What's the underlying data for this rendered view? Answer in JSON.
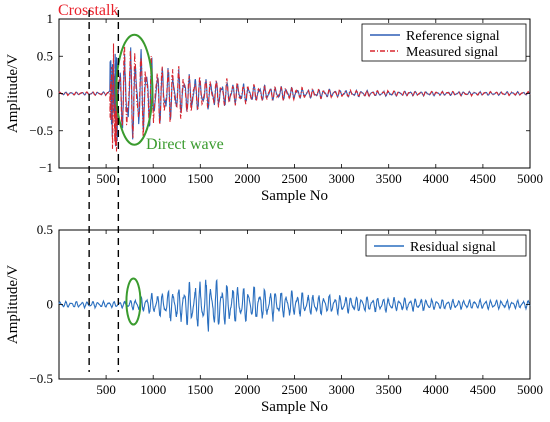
{
  "chart_data": [
    {
      "type": "line",
      "xlabel": "Sample No",
      "ylabel": "Amplitude/V",
      "xlim": [
        0,
        5000
      ],
      "ylim": [
        -1,
        1
      ],
      "xticks": [
        500,
        1000,
        1500,
        2000,
        2500,
        3000,
        3500,
        4000,
        4500,
        5000
      ],
      "yticks": [
        -1,
        -0.5,
        0,
        0.5,
        1
      ],
      "ytick_labels": [
        "−1",
        "−0.5",
        "0",
        "0.5",
        "1"
      ],
      "grid": false,
      "legend_position": "top-right",
      "series": [
        {
          "name": "Reference signal",
          "style": "solid",
          "color": "#2f5fb5"
        },
        {
          "name": "Measured signal",
          "style": "dash-dot",
          "color": "#d8262e"
        }
      ],
      "crosstalk_window": [
        320,
        630
      ],
      "direct_wave": {
        "x": 800,
        "y": 0.05
      },
      "envelope": {
        "onset": 520,
        "peak": 720,
        "peak_amplitude": 0.6,
        "decay_to": 3000
      },
      "annotations": {
        "crosstalk": "Crosstalk",
        "direct_wave": "Direct wave"
      }
    },
    {
      "type": "line",
      "xlabel": "Sample No",
      "ylabel": "Amplitude/V",
      "xlim": [
        0,
        5000
      ],
      "ylim": [
        -0.5,
        0.5
      ],
      "xticks": [
        500,
        1000,
        1500,
        2000,
        2500,
        3000,
        3500,
        4000,
        4500,
        5000
      ],
      "yticks": [
        -0.5,
        0,
        0.5
      ],
      "ytick_labels": [
        "−0.5",
        "0",
        "0.5"
      ],
      "grid": false,
      "legend_position": "top-right",
      "series": [
        {
          "name": "Residual signal",
          "style": "solid",
          "color": "#2a6fbf"
        }
      ],
      "crosstalk_window": [
        320,
        630
      ],
      "direct_wave": {
        "x": 790,
        "y": 0.02
      },
      "envelope": {
        "onset": 700,
        "peak": 1500,
        "peak_amplitude": 0.15,
        "decay_to": 5000
      }
    }
  ]
}
